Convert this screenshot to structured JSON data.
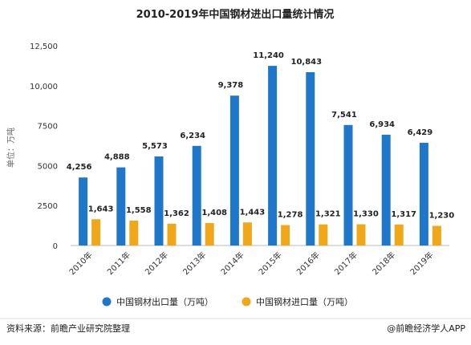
{
  "chart_data": {
    "type": "bar",
    "title": "2010-2019年中国钢材进出口量统计情况",
    "ylabel": "单位：万吨",
    "ylim": [
      0,
      12500
    ],
    "yticks": [
      "0",
      "2500",
      "5000",
      "7500",
      "10,000",
      "12,500"
    ],
    "ytick_values": [
      0,
      2500,
      5000,
      7500,
      10000,
      12500
    ],
    "categories": [
      "2010年",
      "2011年",
      "2012年",
      "2013年",
      "2014年",
      "2015年",
      "2016年",
      "2017年",
      "2018年",
      "2019年"
    ],
    "series": [
      {
        "name": "中国钢材出口量（万吨）",
        "color": "#1f77c9",
        "values": [
          4256,
          4888,
          5573,
          6234,
          9378,
          11240,
          10843,
          7541,
          6934,
          6429
        ],
        "labels": [
          "4,256",
          "4,888",
          "5,573",
          "6,234",
          "9,378",
          "11,240",
          "10,843",
          "7,541",
          "6,934",
          "6,429"
        ]
      },
      {
        "name": "中国钢材进口量（万吨）",
        "color": "#f0a818",
        "values": [
          1643,
          1558,
          1362,
          1408,
          1443,
          1278,
          1321,
          1330,
          1317,
          1230
        ],
        "labels": [
          "1,643",
          "1,558",
          "1,362",
          "1,408",
          "1,443",
          "1,278",
          "1,321",
          "1,330",
          "1,317",
          "1,230"
        ]
      }
    ],
    "legend_position": "bottom",
    "grid": false
  },
  "footer": {
    "source": "资料来源：前瞻产业研究院整理",
    "brand": "@前瞻经济学人APP"
  }
}
